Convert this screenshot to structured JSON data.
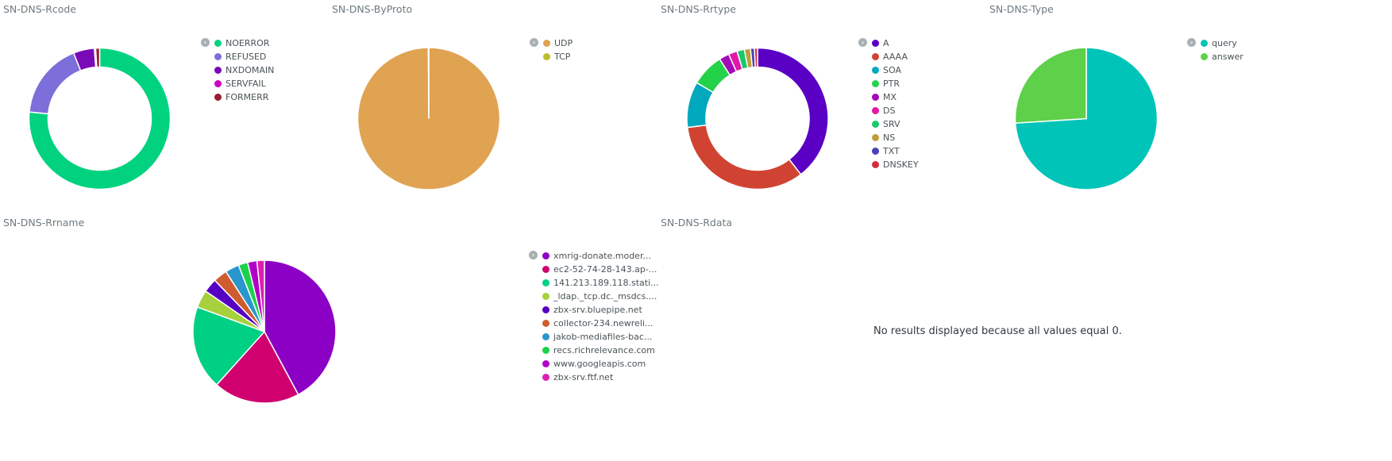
{
  "chart_data": [
    {
      "id": "rcode",
      "type": "pie",
      "donut": true,
      "title": "SN-DNS-Rcode",
      "categories": [
        "NOERROR",
        "REFUSED",
        "NXDOMAIN",
        "SERVFAIL",
        "FORMERR"
      ],
      "values": [
        76.5,
        17.5,
        4.8,
        0.3,
        0.9
      ],
      "colors": [
        "#00d27f",
        "#7c6fda",
        "#7a09b8",
        "#cc00c1",
        "#9b1b30"
      ],
      "legend_position": "right"
    },
    {
      "id": "byproto",
      "type": "pie",
      "donut": false,
      "title": "SN-DNS-ByProto",
      "categories": [
        "UDP",
        "TCP"
      ],
      "values": [
        99.9,
        0.1
      ],
      "colors": [
        "#e0a352",
        "#bdbd2e"
      ],
      "legend_position": "right"
    },
    {
      "id": "rrtype",
      "type": "pie",
      "donut": true,
      "title": "SN-DNS-Rrtype",
      "categories": [
        "A",
        "AAAA",
        "SOA",
        "PTR",
        "MX",
        "DS",
        "SRV",
        "NS",
        "TXT",
        "DNSKEY"
      ],
      "values": [
        39.5,
        33.5,
        10.5,
        7.5,
        2.3,
        2.0,
        1.7,
        1.4,
        0.9,
        0.7
      ],
      "colors": [
        "#5a00c4",
        "#d04333",
        "#00a8be",
        "#24d24a",
        "#a30ab8",
        "#e018a8",
        "#17c96b",
        "#bf9d3a",
        "#4a3fb8",
        "#d62b3a"
      ],
      "legend_position": "right"
    },
    {
      "id": "type",
      "type": "pie",
      "donut": false,
      "title": "SN-DNS-Type",
      "categories": [
        "query",
        "answer"
      ],
      "values": [
        74,
        26
      ],
      "colors": [
        "#00c4b8",
        "#5ed04a"
      ],
      "legend_position": "right"
    },
    {
      "id": "rrname",
      "type": "pie",
      "donut": false,
      "title": "SN-DNS-Rrname",
      "categories": [
        "xmrig-donate.moder...",
        "ec2-52-74-28-143.ap-...",
        "141.213.189.118.stati...",
        "_ldap._tcp.dc._msdcs....",
        "zbx-srv.bluepipe.net",
        "collector-234.newreli...",
        "jakob-mediafiles-bac...",
        "recs.richrelevance.com",
        "www.googleapis.com",
        "zbx-srv.ftf.net"
      ],
      "values": [
        40.0,
        18.5,
        18.0,
        3.8,
        3.0,
        3.0,
        3.0,
        2.0,
        2.0,
        1.6
      ],
      "colors": [
        "#8b00c4",
        "#d0006f",
        "#00d084",
        "#a6d03c",
        "#5600c4",
        "#cf5c2e",
        "#2996cc",
        "#1bd14b",
        "#b100c8",
        "#dd1fb1"
      ],
      "legend_position": "right"
    }
  ],
  "rdata_panel": {
    "title": "SN-DNS-Rdata",
    "empty_message": "No results displayed because all values equal 0."
  },
  "legend_toggle_icon": "chevron-right-icon"
}
